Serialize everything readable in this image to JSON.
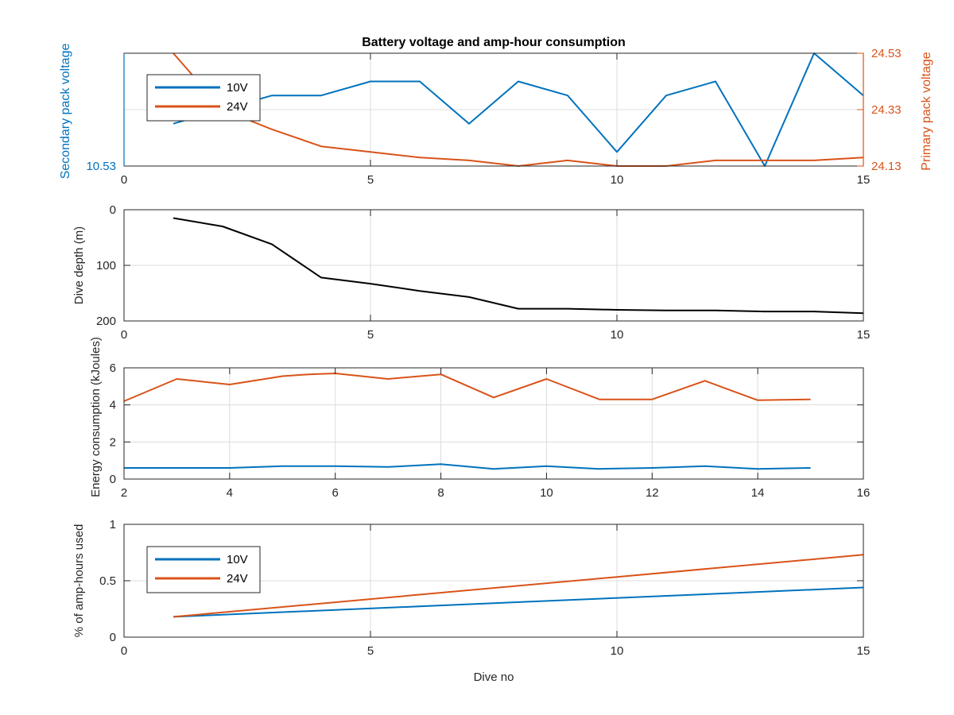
{
  "figure": {
    "title": "Battery voltage and amp-hour consumption"
  },
  "colors": {
    "10V": "#0072BD",
    "24V": "#D95319",
    "depth": "#000000"
  },
  "chart_data": [
    {
      "type": "line",
      "title": "Battery voltage and amp-hour consumption",
      "xlabel": "",
      "ylabel_left": "Secondary pack voltage",
      "ylabel_right": "Primary pack voltage",
      "xlim": [
        0,
        15
      ],
      "xticks": [
        0,
        5,
        10,
        15
      ],
      "ylim_left": [
        10.53,
        10.61
      ],
      "yticks_left": [
        10.53
      ],
      "ylim_right": [
        24.13,
        24.53
      ],
      "yticks_right": [
        24.13,
        24.33,
        24.53
      ],
      "grid": true,
      "legend_position": "top-left",
      "series": [
        {
          "name": "10V",
          "axis": "left",
          "x": [
            1,
            2,
            3,
            4,
            5,
            6,
            7,
            8,
            9,
            10,
            11,
            12,
            13,
            14,
            15
          ],
          "values": [
            10.56,
            10.57,
            10.58,
            10.58,
            10.59,
            10.59,
            10.56,
            10.59,
            10.58,
            10.54,
            10.58,
            10.59,
            10.53,
            10.61,
            10.58
          ]
        },
        {
          "name": "24V",
          "axis": "right",
          "x": [
            1,
            2,
            3,
            4,
            5,
            6,
            7,
            8,
            9,
            10,
            11,
            12,
            13,
            14,
            15
          ],
          "values": [
            24.53,
            24.33,
            24.26,
            24.2,
            24.18,
            24.16,
            24.15,
            24.13,
            24.15,
            24.13,
            24.13,
            24.15,
            24.15,
            24.15,
            24.16
          ]
        }
      ]
    },
    {
      "type": "line",
      "title": "",
      "xlabel": "",
      "ylabel": "Dive depth (m)",
      "xlim": [
        0,
        15
      ],
      "xticks": [
        0,
        5,
        10,
        15
      ],
      "ylim": [
        0,
        200
      ],
      "yticks": [
        0,
        100,
        200
      ],
      "y_reversed": true,
      "grid": true,
      "series": [
        {
          "x": [
            1,
            2,
            3,
            4,
            5,
            6,
            7,
            8,
            9,
            10,
            11,
            12,
            13,
            14,
            15
          ],
          "values": [
            15,
            30,
            62,
            122,
            133,
            146,
            157,
            178,
            178,
            180,
            181,
            181,
            183,
            183,
            186
          ]
        }
      ]
    },
    {
      "type": "line",
      "title": "",
      "xlabel": "",
      "ylabel": "Energy consumption (kJoules)",
      "xlim": [
        2,
        16
      ],
      "xticks": [
        2,
        4,
        6,
        8,
        10,
        12,
        14,
        16
      ],
      "ylim": [
        0,
        6
      ],
      "yticks": [
        0,
        2,
        4,
        6
      ],
      "grid": true,
      "series": [
        {
          "x": [
            2,
            3,
            4,
            5,
            6,
            7,
            8,
            9,
            10,
            11,
            12,
            13,
            14,
            15
          ],
          "values": [
            0.6,
            0.6,
            0.6,
            0.7,
            0.7,
            0.65,
            0.8,
            0.55,
            0.7,
            0.55,
            0.6,
            0.7,
            0.55,
            0.6
          ]
        },
        {
          "x": [
            2,
            3,
            4,
            5,
            5.5,
            6,
            7,
            8,
            9,
            10,
            11,
            12,
            13,
            14,
            15
          ],
          "values": [
            4.2,
            5.4,
            5.1,
            5.55,
            5.65,
            5.7,
            5.4,
            5.65,
            4.4,
            5.4,
            4.3,
            4.3,
            5.3,
            4.25,
            4.3
          ]
        }
      ]
    },
    {
      "type": "line",
      "title": "",
      "xlabel": "Dive no",
      "ylabel": "% of amp-hours used",
      "xlim": [
        0,
        15
      ],
      "xticks": [
        0,
        5,
        10,
        15
      ],
      "ylim": [
        0,
        1
      ],
      "yticks": [
        0,
        0.5,
        1
      ],
      "ytick_labels": [
        "0",
        "0.5",
        "1"
      ],
      "grid": true,
      "legend_position": "top-left",
      "series": [
        {
          "name": "10V",
          "x": [
            1,
            15
          ],
          "values": [
            0.18,
            0.44
          ]
        },
        {
          "name": "24V",
          "x": [
            1,
            15
          ],
          "values": [
            0.18,
            0.73
          ]
        }
      ]
    }
  ]
}
